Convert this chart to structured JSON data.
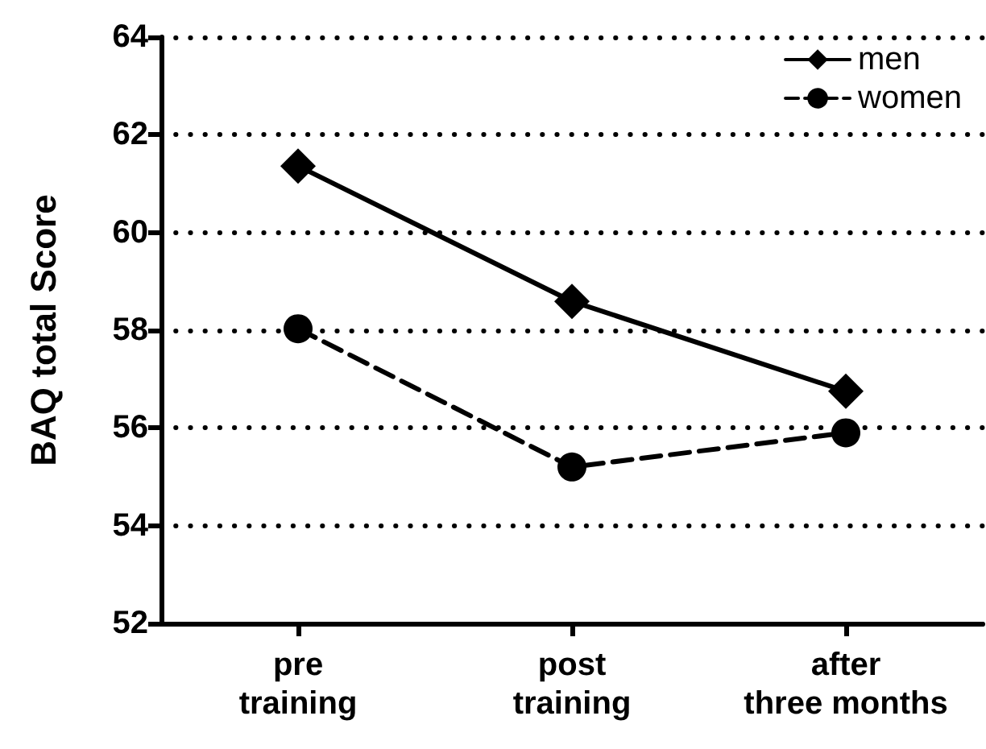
{
  "chart_data": {
    "type": "line",
    "ylabel": "BAQ total Score",
    "categories": [
      "pre\ntraining",
      "post\ntraining",
      "after\nthree months"
    ],
    "series": [
      {
        "name": "men",
        "color": "#000000",
        "values": [
          61.36,
          58.59,
          56.75
        ],
        "marker": "diamond",
        "line_style": "solid"
      },
      {
        "name": "women",
        "color": "#000000",
        "values": [
          58.03,
          55.2,
          55.9
        ],
        "marker": "circle",
        "line_style": "dashed"
      }
    ],
    "ylim": [
      52,
      64
    ],
    "yticks": [
      52,
      54,
      56,
      58,
      60,
      62,
      64
    ],
    "grid": "y",
    "legend": "top right"
  }
}
